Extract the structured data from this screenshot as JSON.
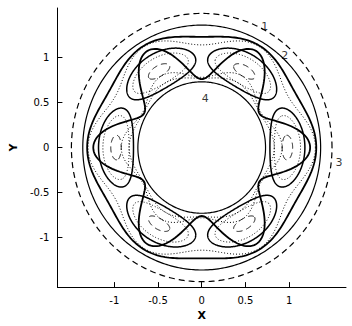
{
  "chart_data": {
    "type": "streamlines",
    "xlabel": "X",
    "ylabel": "Y",
    "xlim": [
      -1.65,
      1.65
    ],
    "ylim": [
      -1.55,
      1.55
    ],
    "xticks": [
      -1,
      -0.5,
      0,
      0.5,
      1
    ],
    "yticks": [
      -1,
      -0.5,
      0,
      0.5,
      1
    ],
    "color": "#000000",
    "circles": [
      {
        "r": 0.73,
        "line_style": "solid"
      },
      {
        "r": 1.36,
        "line_style": "solid"
      },
      {
        "r": 1.49,
        "line_style": "dashed"
      }
    ],
    "streamlines": [
      {
        "r": 0.8,
        "amplitude": 0.03,
        "line_style": "dotted"
      },
      {
        "r": 0.85,
        "amplitude": 0.07,
        "line_style": "dotted"
      },
      {
        "r": 1.0,
        "amplitude": 0.24,
        "line_style": "solid"
      },
      {
        "r": 1.27,
        "amplitude": 0.04,
        "line_style": "solid"
      },
      {
        "r": 1.22,
        "amplitude": 0.08,
        "line_style": "dotted"
      }
    ],
    "vortices": {
      "angles": [
        0,
        60,
        120,
        180,
        240,
        300
      ],
      "r": 0.98,
      "loops": [
        {
          "radial_width": 0.2,
          "angular_width": 26,
          "line_style": "solid"
        },
        {
          "radial_width": 0.15,
          "angular_width": 21,
          "line_style": "dotted"
        },
        {
          "radial_width": 0.06,
          "angular_width": 8,
          "line_style": "dashed"
        }
      ]
    },
    "annotations": [
      {
        "text": "1",
        "x": 0.72,
        "y": 1.35
      },
      {
        "text": "2",
        "x": 0.95,
        "y": 1.02
      },
      {
        "text": "3",
        "x": 1.57,
        "y": -0.17
      },
      {
        "text": "4",
        "x": 0.04,
        "y": 0.55
      }
    ]
  }
}
